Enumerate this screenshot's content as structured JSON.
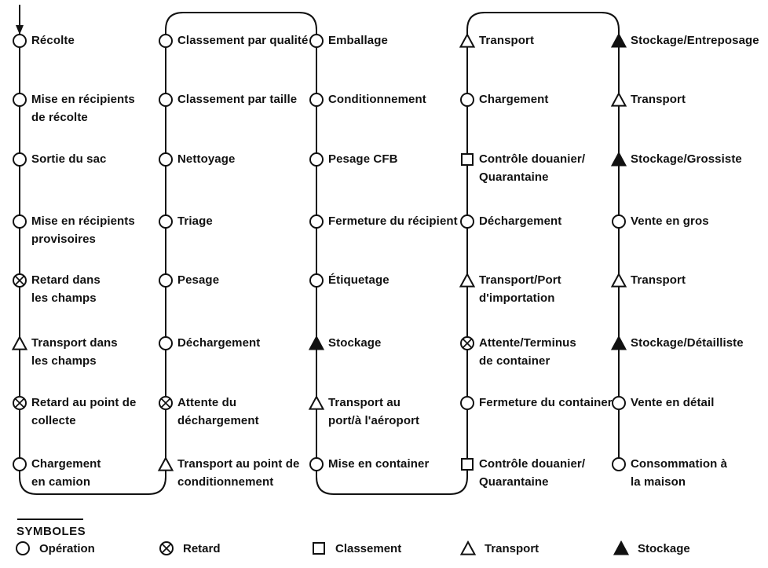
{
  "colors": {
    "ink": "#111111",
    "paper": "#ffffff"
  },
  "legend": {
    "title": "SYMBOLES",
    "items": [
      {
        "symbol": "operation",
        "label": "Opération"
      },
      {
        "symbol": "retard",
        "label": "Retard"
      },
      {
        "symbol": "classement",
        "label": "Classement"
      },
      {
        "symbol": "transport",
        "label": "Transport"
      },
      {
        "symbol": "stockage",
        "label": "Stockage"
      }
    ]
  },
  "columns": [
    {
      "steps": [
        {
          "symbol": "operation",
          "label": "Récolte"
        },
        {
          "symbol": "operation",
          "label": "Mise en récipients\nde récolte"
        },
        {
          "symbol": "operation",
          "label": "Sortie du sac"
        },
        {
          "symbol": "operation",
          "label": "Mise en récipients\nprovisoires"
        },
        {
          "symbol": "retard",
          "label": "Retard dans\nles champs"
        },
        {
          "symbol": "transport",
          "label": "Transport dans\nles champs"
        },
        {
          "symbol": "retard",
          "label": "Retard au point de\ncollecte"
        },
        {
          "symbol": "operation",
          "label": "Chargement\nen camion"
        }
      ]
    },
    {
      "steps": [
        {
          "symbol": "operation",
          "label": "Classement par qualité"
        },
        {
          "symbol": "operation",
          "label": "Classement par taille"
        },
        {
          "symbol": "operation",
          "label": "Nettoyage"
        },
        {
          "symbol": "operation",
          "label": "Triage"
        },
        {
          "symbol": "operation",
          "label": "Pesage"
        },
        {
          "symbol": "operation",
          "label": "Déchargement"
        },
        {
          "symbol": "retard",
          "label": "Attente du\ndéchargement"
        },
        {
          "symbol": "transport",
          "label": "Transport au point de\nconditionnement"
        }
      ]
    },
    {
      "steps": [
        {
          "symbol": "operation",
          "label": "Emballage"
        },
        {
          "symbol": "operation",
          "label": "Conditionnement"
        },
        {
          "symbol": "operation",
          "label": "Pesage CFB"
        },
        {
          "symbol": "operation",
          "label": "Fermeture du récipient"
        },
        {
          "symbol": "operation",
          "label": "Étiquetage"
        },
        {
          "symbol": "stockage",
          "label": "Stockage"
        },
        {
          "symbol": "transport",
          "label": "Transport au\nport/à l'aéroport"
        },
        {
          "symbol": "operation",
          "label": "Mise en container"
        }
      ]
    },
    {
      "steps": [
        {
          "symbol": "transport",
          "label": "Transport"
        },
        {
          "symbol": "operation",
          "label": "Chargement"
        },
        {
          "symbol": "classement",
          "label": "Contrôle douanier/\nQuarantaine"
        },
        {
          "symbol": "operation",
          "label": "Déchargement"
        },
        {
          "symbol": "transport",
          "label": "Transport/Port\nd'importation"
        },
        {
          "symbol": "retard",
          "label": "Attente/Terminus\nde container"
        },
        {
          "symbol": "operation",
          "label": "Fermeture du container"
        },
        {
          "symbol": "classement",
          "label": "Contrôle douanier/\nQuarantaine"
        }
      ]
    },
    {
      "steps": [
        {
          "symbol": "stockage",
          "label": "Stockage/Entreposage"
        },
        {
          "symbol": "transport",
          "label": "Transport"
        },
        {
          "symbol": "stockage",
          "label": "Stockage/Grossiste"
        },
        {
          "symbol": "operation",
          "label": "Vente en gros"
        },
        {
          "symbol": "transport",
          "label": "Transport"
        },
        {
          "symbol": "stockage",
          "label": "Stockage/Détailliste"
        },
        {
          "symbol": "operation",
          "label": "Vente en détail"
        },
        {
          "symbol": "operation",
          "label": "Consommation à\nla maison"
        }
      ]
    }
  ]
}
